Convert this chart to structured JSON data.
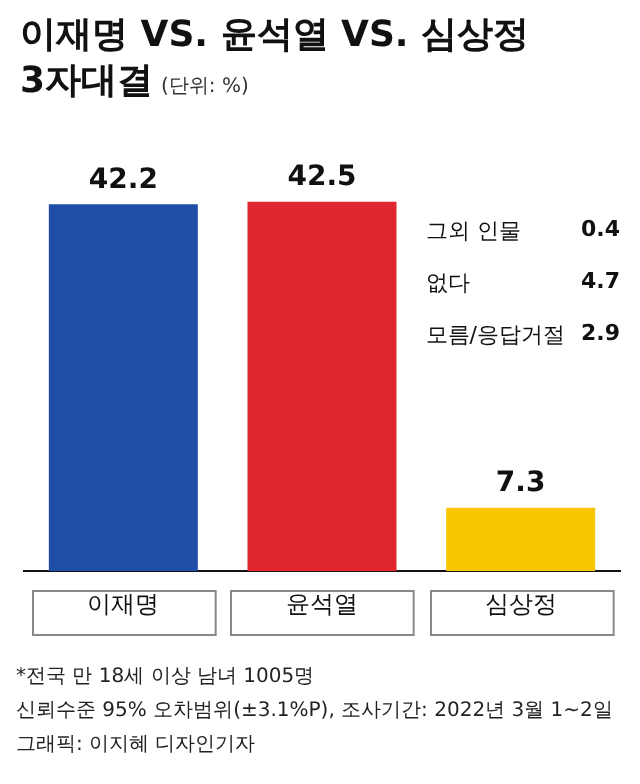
{
  "chart_data": {
    "type": "bar",
    "title": "이재명 VS. 윤석열 VS. 심상정\n3자대결",
    "subtitle": "(단위: %)",
    "categories": [
      "이재명",
      "윤석열",
      "심상정"
    ],
    "values": [
      42.2,
      42.5,
      7.3
    ],
    "colors": [
      "#1f4ea6",
      "#e1262f",
      "#f7c600"
    ],
    "data_labels": true,
    "grid": false,
    "legend": false,
    "tick_labels": "x",
    "annotations": [
      "그외 인물 0.4",
      "없다 4.7",
      "모름/응답거절 2.9",
      "*전국 만 18세 이상 남녀 1005명",
      "신뢰수준 95% 오차범위(±3.1%P), 조사기간: 2022년 3월 1~2일",
      "그래픽: 이지혜 디자인기자"
    ]
  }
}
